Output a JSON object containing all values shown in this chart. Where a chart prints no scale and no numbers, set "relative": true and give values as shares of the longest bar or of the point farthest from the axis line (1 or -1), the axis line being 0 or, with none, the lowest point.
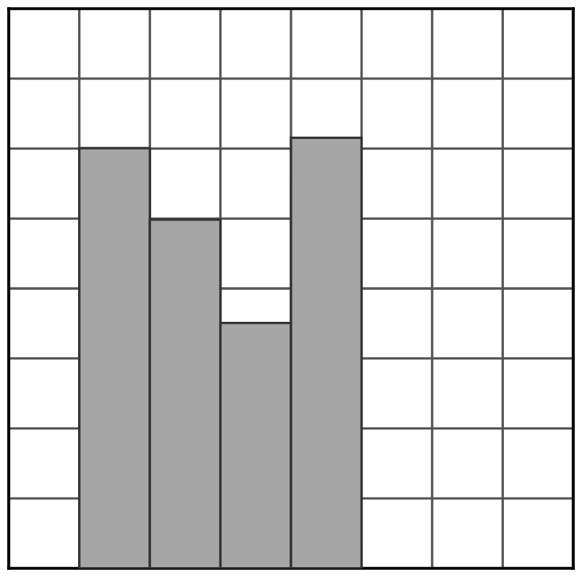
{
  "chart_data": {
    "type": "bar",
    "relative": true,
    "categories": [
      null,
      null,
      null,
      null
    ],
    "values": [
      0.976,
      0.81,
      0.57,
      1
    ],
    "color": "#a6a6a6",
    "grid": true
  }
}
